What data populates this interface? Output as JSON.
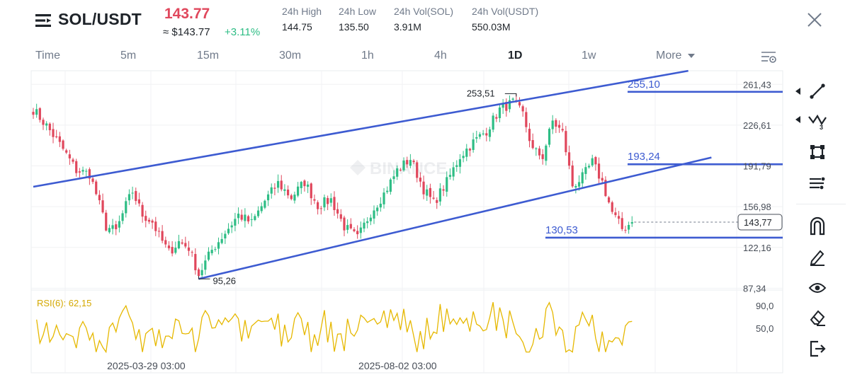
{
  "header": {
    "pair": "SOL/USDT",
    "price": "143.77",
    "approx_price": "≈ $143.77",
    "change": "+3.11%",
    "stats": [
      {
        "label": "24h High",
        "value": "144.75"
      },
      {
        "label": "24h Low",
        "value": "135.50"
      },
      {
        "label": "24h Vol(SOL)",
        "value": "3.91M"
      },
      {
        "label": "24h Vol(USDT)",
        "value": "550.03M"
      }
    ]
  },
  "tabs": [
    {
      "label": "Time",
      "active": false
    },
    {
      "label": "5m",
      "active": false
    },
    {
      "label": "15m",
      "active": false
    },
    {
      "label": "30m",
      "active": false
    },
    {
      "label": "1h",
      "active": false
    },
    {
      "label": "4h",
      "active": false
    },
    {
      "label": "1D",
      "active": true
    },
    {
      "label": "1w",
      "active": false
    },
    {
      "label": "More",
      "active": false
    }
  ],
  "toolbar": [
    "trend-line-tool",
    "fibonacci-tool",
    "rectangle-tool",
    "multi-line-tool",
    "magnet-tool",
    "pencil-tool",
    "visibility-tool",
    "eraser-tool",
    "exit-tool"
  ],
  "colors": {
    "up": "#2ebd85",
    "down": "#e0475c",
    "drawing": "#3d5bd1",
    "rsi": "#e6b800",
    "text": "#1e2329",
    "muted": "#707a8a"
  },
  "chart_data": {
    "type": "candlestick",
    "symbol": "SOL/USDT",
    "interval": "1D",
    "watermark": "BINANCE",
    "price_axis": {
      "ticks": [
        "261,43",
        "226,61",
        "191,79",
        "156,98",
        "122,16",
        "87,34"
      ],
      "range": [
        76,
        282
      ]
    },
    "last_price_label": "143,77",
    "last_price": 143.77,
    "x_axis": {
      "labels": [
        "2025-03-29 03:00",
        "2025-08-02 03:00"
      ],
      "label_index": [
        39,
        115
      ],
      "bars": 182
    },
    "price_path": [
      {
        "i": 0,
        "p": 240
      },
      {
        "i": 4,
        "p": 226
      },
      {
        "i": 9,
        "p": 206
      },
      {
        "i": 13,
        "p": 188
      },
      {
        "i": 17,
        "p": 185
      },
      {
        "i": 19,
        "p": 168
      },
      {
        "i": 22,
        "p": 140
      },
      {
        "i": 25,
        "p": 136
      },
      {
        "i": 28,
        "p": 158
      },
      {
        "i": 30,
        "p": 170
      },
      {
        "i": 33,
        "p": 150
      },
      {
        "i": 36,
        "p": 144
      },
      {
        "i": 38,
        "p": 132
      },
      {
        "i": 41,
        "p": 118
      },
      {
        "i": 44,
        "p": 127
      },
      {
        "i": 47,
        "p": 122
      },
      {
        "i": 50,
        "p": 99
      },
      {
        "i": 54,
        "p": 120
      },
      {
        "i": 58,
        "p": 135
      },
      {
        "i": 62,
        "p": 150
      },
      {
        "i": 66,
        "p": 143
      },
      {
        "i": 70,
        "p": 162
      },
      {
        "i": 74,
        "p": 177
      },
      {
        "i": 78,
        "p": 165
      },
      {
        "i": 82,
        "p": 178
      },
      {
        "i": 86,
        "p": 158
      },
      {
        "i": 90,
        "p": 163
      },
      {
        "i": 94,
        "p": 140
      },
      {
        "i": 98,
        "p": 130
      },
      {
        "i": 102,
        "p": 152
      },
      {
        "i": 106,
        "p": 168
      },
      {
        "i": 110,
        "p": 188
      },
      {
        "i": 114,
        "p": 198
      },
      {
        "i": 118,
        "p": 172
      },
      {
        "i": 121,
        "p": 160
      },
      {
        "i": 125,
        "p": 178
      },
      {
        "i": 129,
        "p": 200
      },
      {
        "i": 133,
        "p": 212
      },
      {
        "i": 137,
        "p": 222
      },
      {
        "i": 141,
        "p": 240
      },
      {
        "i": 145,
        "p": 246
      },
      {
        "i": 148,
        "p": 236
      },
      {
        "i": 151,
        "p": 205
      },
      {
        "i": 154,
        "p": 200
      },
      {
        "i": 157,
        "p": 230
      },
      {
        "i": 160,
        "p": 220
      },
      {
        "i": 163,
        "p": 175
      },
      {
        "i": 166,
        "p": 182
      },
      {
        "i": 169,
        "p": 195
      },
      {
        "i": 172,
        "p": 178
      },
      {
        "i": 175,
        "p": 152
      },
      {
        "i": 178,
        "p": 138
      },
      {
        "i": 181,
        "p": 143.77
      }
    ],
    "annotations": {
      "high": {
        "label": "253,51",
        "value": 253.51,
        "i": 146
      },
      "low": {
        "label": "95,26",
        "value": 95.26,
        "i": 50
      }
    },
    "drawings": {
      "channel_upper": [
        {
          "i": 0,
          "p": 174
        },
        {
          "i": 198,
          "p": 273
        }
      ],
      "channel_lower": [
        {
          "i": 50,
          "p": 95.26
        },
        {
          "i": 205,
          "p": 199
        }
      ],
      "levels": [
        {
          "label": "255,10",
          "value": 255.1
        },
        {
          "label": "193,24",
          "value": 193.24
        },
        {
          "label": "130,53",
          "value": 130.53
        }
      ]
    },
    "rsi": {
      "label": "RSI(6): 62,15",
      "value": 62.15,
      "period": 6,
      "ticks": [
        "90,0",
        "50,0"
      ],
      "range": [
        0,
        100
      ]
    }
  }
}
